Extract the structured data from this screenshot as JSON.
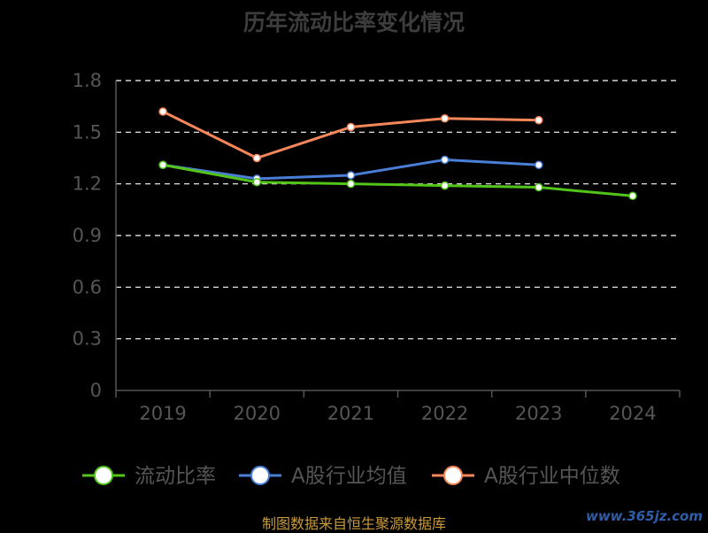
{
  "chart_data": {
    "type": "line",
    "title": "历年流动比率变化情况",
    "categories": [
      "2019",
      "2020",
      "2021",
      "2022",
      "2023",
      "2024"
    ],
    "y_ticks": [
      "0",
      "0.3",
      "0.6",
      "0.9",
      "1.2",
      "1.5",
      "1.8"
    ],
    "ylim": [
      0,
      1.8
    ],
    "grid": true,
    "legend_position": "bottom",
    "series": [
      {
        "name": "流动比率",
        "color": "#52c41a",
        "values": [
          1.31,
          1.21,
          1.2,
          1.19,
          1.18,
          1.13
        ]
      },
      {
        "name": "A股行业均值",
        "color": "#4a7fd8",
        "values": [
          1.31,
          1.23,
          1.25,
          1.34,
          1.31,
          null
        ]
      },
      {
        "name": "A股行业中位数",
        "color": "#f5875a",
        "values": [
          1.62,
          1.35,
          1.53,
          1.58,
          1.57,
          null
        ]
      }
    ]
  },
  "footer": {
    "source": "制图数据来自恒生聚源数据库",
    "watermark": "www.365jz.com"
  }
}
